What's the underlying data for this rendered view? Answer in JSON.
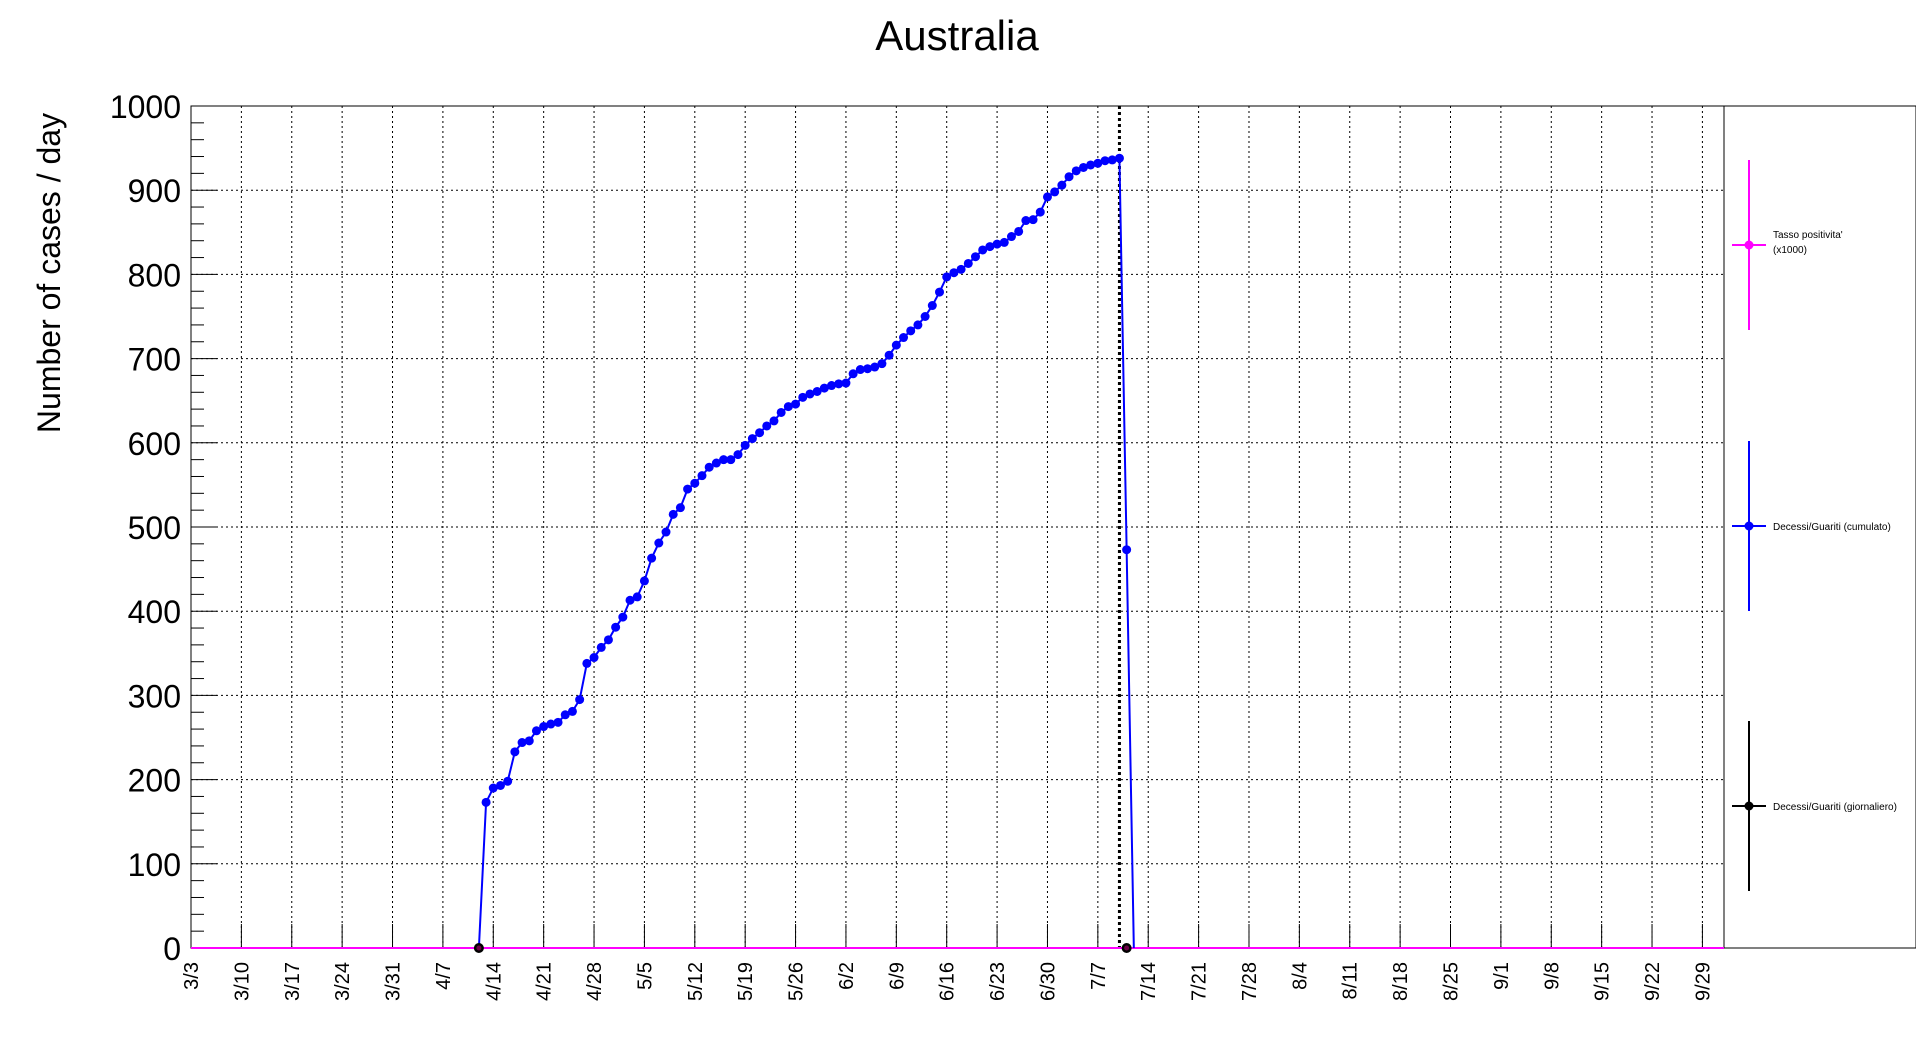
{
  "chart_data": {
    "type": "line",
    "title": "Australia",
    "ylabel": "Number of cases / day",
    "xlabel": "",
    "ylim": [
      0,
      1000
    ],
    "y_ticks": [
      "0",
      "100",
      "200",
      "300",
      "400",
      "500",
      "600",
      "700",
      "800",
      "900",
      "1000"
    ],
    "x_tick_labels": [
      "3/3",
      "3/10",
      "3/17",
      "3/24",
      "3/31",
      "4/7",
      "4/14",
      "4/21",
      "4/28",
      "5/5",
      "5/12",
      "5/19",
      "5/26",
      "6/2",
      "6/9",
      "6/16",
      "6/23",
      "6/30",
      "7/7",
      "7/14",
      "7/21",
      "7/28",
      "8/4",
      "8/11",
      "8/18",
      "8/25",
      "9/1",
      "9/8",
      "9/15",
      "9/22",
      "9/29"
    ],
    "x_start": "3/3",
    "x_end": "10/2",
    "grid": true,
    "legend_position": "right",
    "marker_line_date": "7/10",
    "series": [
      {
        "name": "Tasso positivita' (x1000)",
        "color": "#ff00ff",
        "values": [
          {
            "x": "3/3",
            "y": 0
          },
          {
            "x": "10/2",
            "y": 0
          }
        ]
      },
      {
        "name": "Decessi/Guariti (cumulato)",
        "color": "#0000ff",
        "values": [
          {
            "x": "4/12",
            "y": 0
          },
          {
            "x": "4/13",
            "y": 173
          },
          {
            "x": "4/14",
            "y": 190
          },
          {
            "x": "4/15",
            "y": 193
          },
          {
            "x": "4/16",
            "y": 198
          },
          {
            "x": "4/17",
            "y": 233
          },
          {
            "x": "4/18",
            "y": 244
          },
          {
            "x": "4/19",
            "y": 246
          },
          {
            "x": "4/20",
            "y": 258
          },
          {
            "x": "4/21",
            "y": 263
          },
          {
            "x": "4/22",
            "y": 266
          },
          {
            "x": "4/23",
            "y": 268
          },
          {
            "x": "4/24",
            "y": 277
          },
          {
            "x": "4/25",
            "y": 281
          },
          {
            "x": "4/26",
            "y": 295
          },
          {
            "x": "4/27",
            "y": 338
          },
          {
            "x": "4/28",
            "y": 345
          },
          {
            "x": "4/29",
            "y": 357
          },
          {
            "x": "4/30",
            "y": 366
          },
          {
            "x": "5/1",
            "y": 381
          },
          {
            "x": "5/2",
            "y": 393
          },
          {
            "x": "5/3",
            "y": 413
          },
          {
            "x": "5/4",
            "y": 417
          },
          {
            "x": "5/5",
            "y": 436
          },
          {
            "x": "5/6",
            "y": 463
          },
          {
            "x": "5/7",
            "y": 481
          },
          {
            "x": "5/8",
            "y": 494
          },
          {
            "x": "5/9",
            "y": 515
          },
          {
            "x": "5/10",
            "y": 523
          },
          {
            "x": "5/11",
            "y": 545
          },
          {
            "x": "5/12",
            "y": 552
          },
          {
            "x": "5/13",
            "y": 561
          },
          {
            "x": "5/14",
            "y": 571
          },
          {
            "x": "5/15",
            "y": 576
          },
          {
            "x": "5/16",
            "y": 580
          },
          {
            "x": "5/17",
            "y": 580
          },
          {
            "x": "5/18",
            "y": 586
          },
          {
            "x": "5/19",
            "y": 597
          },
          {
            "x": "5/20",
            "y": 605
          },
          {
            "x": "5/21",
            "y": 612
          },
          {
            "x": "5/22",
            "y": 620
          },
          {
            "x": "5/23",
            "y": 626
          },
          {
            "x": "5/24",
            "y": 636
          },
          {
            "x": "5/25",
            "y": 643
          },
          {
            "x": "5/26",
            "y": 646
          },
          {
            "x": "5/27",
            "y": 654
          },
          {
            "x": "5/28",
            "y": 658
          },
          {
            "x": "5/29",
            "y": 661
          },
          {
            "x": "5/30",
            "y": 665
          },
          {
            "x": "5/31",
            "y": 668
          },
          {
            "x": "6/1",
            "y": 670
          },
          {
            "x": "6/2",
            "y": 671
          },
          {
            "x": "6/3",
            "y": 682
          },
          {
            "x": "6/4",
            "y": 687
          },
          {
            "x": "6/5",
            "y": 688
          },
          {
            "x": "6/6",
            "y": 690
          },
          {
            "x": "6/7",
            "y": 694
          },
          {
            "x": "6/8",
            "y": 704
          },
          {
            "x": "6/9",
            "y": 716
          },
          {
            "x": "6/10",
            "y": 725
          },
          {
            "x": "6/11",
            "y": 733
          },
          {
            "x": "6/12",
            "y": 740
          },
          {
            "x": "6/13",
            "y": 750
          },
          {
            "x": "6/14",
            "y": 763
          },
          {
            "x": "6/15",
            "y": 779
          },
          {
            "x": "6/16",
            "y": 797
          },
          {
            "x": "6/17",
            "y": 802
          },
          {
            "x": "6/18",
            "y": 806
          },
          {
            "x": "6/19",
            "y": 813
          },
          {
            "x": "6/20",
            "y": 821
          },
          {
            "x": "6/21",
            "y": 829
          },
          {
            "x": "6/22",
            "y": 833
          },
          {
            "x": "6/23",
            "y": 836
          },
          {
            "x": "6/24",
            "y": 838
          },
          {
            "x": "6/25",
            "y": 845
          },
          {
            "x": "6/26",
            "y": 851
          },
          {
            "x": "6/27",
            "y": 864
          },
          {
            "x": "6/28",
            "y": 865
          },
          {
            "x": "6/29",
            "y": 874
          },
          {
            "x": "6/30",
            "y": 892
          },
          {
            "x": "7/1",
            "y": 898
          },
          {
            "x": "7/2",
            "y": 906
          },
          {
            "x": "7/3",
            "y": 916
          },
          {
            "x": "7/4",
            "y": 923
          },
          {
            "x": "7/5",
            "y": 927
          },
          {
            "x": "7/6",
            "y": 930
          },
          {
            "x": "7/7",
            "y": 932
          },
          {
            "x": "7/8",
            "y": 935
          },
          {
            "x": "7/9",
            "y": 936
          },
          {
            "x": "7/10",
            "y": 938
          },
          {
            "x": "7/11",
            "y": 473
          },
          {
            "x": "7/12",
            "y": 0
          }
        ]
      },
      {
        "name": "Decessi/Guariti (giornaliero)",
        "color": "#000000",
        "values": [
          {
            "x": "4/12",
            "y": 0
          },
          {
            "x": "7/11",
            "y": 0
          }
        ]
      }
    ]
  }
}
